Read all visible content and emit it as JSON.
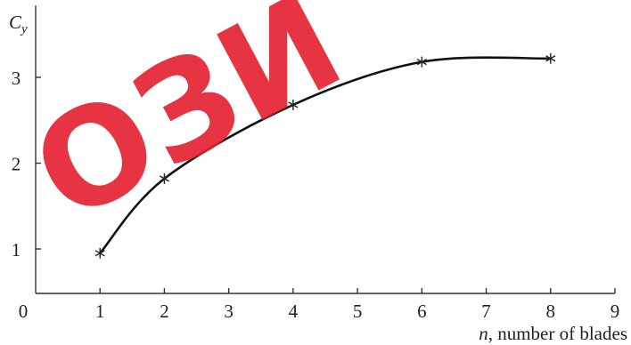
{
  "watermark": {
    "text": "ОЗИ",
    "color": "#e31e2d"
  },
  "chart_data": {
    "type": "line",
    "title": "",
    "ylabel": "C",
    "ylabel_subscript": "y",
    "xlabel_italic": "n",
    "xlabel_rest": ", number of blades",
    "xlim": [
      0,
      9
    ],
    "ylim": [
      0.5,
      3.5
    ],
    "x_ticks": [
      0,
      1,
      2,
      3,
      4,
      5,
      6,
      7,
      8,
      9
    ],
    "y_ticks": [
      1,
      2,
      3
    ],
    "grid": false,
    "series": [
      {
        "marker": "asterisk",
        "color": "#111111",
        "x": [
          1,
          2,
          4,
          6,
          8
        ],
        "y": [
          0.95,
          1.82,
          2.68,
          3.18,
          3.22
        ]
      }
    ]
  }
}
